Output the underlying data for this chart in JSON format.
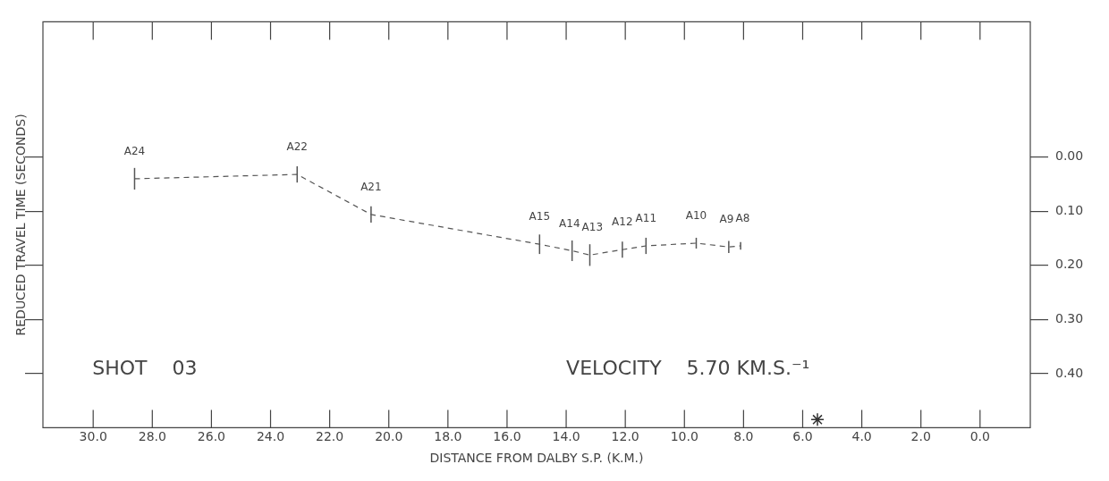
{
  "chart_data": {
    "type": "line",
    "xlabel": "DISTANCE FROM DALBY S.P. (K.M.)",
    "ylabel": "REDUCED TRAVEL TIME (SECONDS)",
    "xlim": [
      31.7,
      -1.7
    ],
    "ylim": [
      0.5,
      -0.25
    ],
    "xticks": [
      {
        "value": 30,
        "label": "30.0"
      },
      {
        "value": 28,
        "label": "28.0"
      },
      {
        "value": 26,
        "label": "26.0"
      },
      {
        "value": 24,
        "label": "24.0"
      },
      {
        "value": 22,
        "label": "22.0"
      },
      {
        "value": 20,
        "label": "20.0"
      },
      {
        "value": 18,
        "label": "18.0"
      },
      {
        "value": 16,
        "label": "16.0"
      },
      {
        "value": 14,
        "label": "14.0"
      },
      {
        "value": 12,
        "label": "12.0"
      },
      {
        "value": 10,
        "label": "10.0"
      },
      {
        "value": 8,
        "label": "8.0"
      },
      {
        "value": 6,
        "label": "6.0"
      },
      {
        "value": 4,
        "label": "4.0"
      },
      {
        "value": 2,
        "label": "2.0"
      },
      {
        "value": 0,
        "label": "0.0"
      }
    ],
    "yticks": [
      {
        "value": 0,
        "label": "0.00"
      },
      {
        "value": 0.1,
        "label": "0.10"
      },
      {
        "value": 0.2,
        "label": "0.20"
      },
      {
        "value": 0.3,
        "label": "0.30"
      },
      {
        "value": 0.4,
        "label": "0.40"
      }
    ],
    "grid": false,
    "legend": false,
    "series": [
      {
        "color": "#555555",
        "line_style": "dashed",
        "marker": "none",
        "x": [
          28.6,
          23.1,
          20.6,
          14.9,
          13.8,
          13.2,
          12.1,
          11.3,
          9.6,
          8.5,
          8.1
        ],
        "values": [
          0.04,
          0.032,
          0.106,
          0.161,
          0.173,
          0.181,
          0.171,
          0.164,
          0.159,
          0.166,
          0.164
        ],
        "errors": [
          0.02,
          0.015,
          0.015,
          0.018,
          0.019,
          0.02,
          0.015,
          0.015,
          0.01,
          0.011,
          0.007
        ]
      },
      {
        "type": "scatter",
        "color": "#333333",
        "marker": "cross",
        "x": [
          5.5
        ],
        "values": [
          0.485
        ]
      }
    ],
    "annotations": [
      {
        "text": "A24",
        "x": 28.6,
        "y": 0.04
      },
      {
        "text": "A22",
        "x": 23.1,
        "y": 0.032
      },
      {
        "text": "A21",
        "x": 20.6,
        "y": 0.106
      },
      {
        "text": "A15",
        "x": 14.9,
        "y": 0.161
      },
      {
        "text": "A14",
        "x": 13.8,
        "y": 0.173
      },
      {
        "text": "A13",
        "x": 13.2,
        "y": 0.181
      },
      {
        "text": "A12",
        "x": 12.1,
        "y": 0.171
      },
      {
        "text": "A11",
        "x": 11.3,
        "y": 0.164
      },
      {
        "text": "A10",
        "x": 9.6,
        "y": 0.159
      },
      {
        "text": "A9",
        "x": 8.5,
        "y": 0.166
      },
      {
        "text": "A8",
        "x": 8.1,
        "y": 0.164
      },
      "SHOT    03",
      "VELOCITY    5.70 KM.S.⁻¹"
    ]
  }
}
